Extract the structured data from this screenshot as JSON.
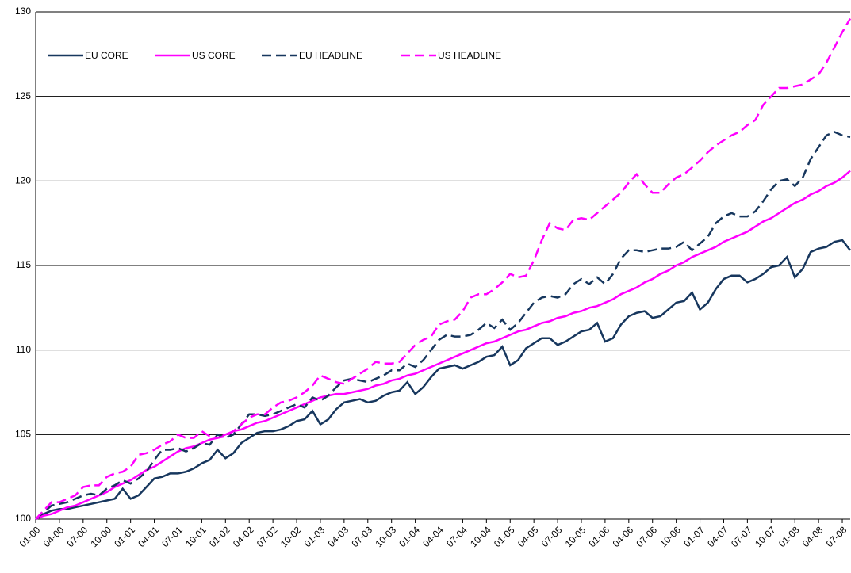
{
  "chart_data": {
    "type": "line",
    "categories": [
      "01-00",
      null,
      null,
      "04-00",
      null,
      null,
      "07-00",
      null,
      null,
      "10-00",
      null,
      null,
      "01-01",
      null,
      null,
      "04-01",
      null,
      null,
      "07-01",
      null,
      null,
      "10-01",
      null,
      null,
      "01-02",
      null,
      null,
      "04-02",
      null,
      null,
      "07-02",
      null,
      null,
      "10-02",
      null,
      null,
      "01-03",
      null,
      null,
      "04-03",
      null,
      null,
      "07-03",
      null,
      null,
      "10-03",
      null,
      null,
      "01-04",
      null,
      null,
      "04-04",
      null,
      null,
      "07-04",
      null,
      null,
      "10-04",
      null,
      null,
      "01-05",
      null,
      null,
      "04-05",
      null,
      null,
      "07-05",
      null,
      null,
      "10-05",
      null,
      null,
      "01-06",
      null,
      null,
      "04-06",
      null,
      null,
      "07-06",
      null,
      null,
      "10-06",
      null,
      null,
      "01-07",
      null,
      null,
      "04-07",
      null,
      null,
      "07-07",
      null,
      null,
      "10-07",
      null,
      null,
      "01-08",
      null,
      null,
      "04-08",
      null,
      null,
      "07-08",
      null
    ],
    "series": [
      {
        "name": "EU CORE",
        "color": "#17375e",
        "dash": false,
        "values": [
          100.0,
          100.3,
          100.5,
          100.6,
          100.6,
          100.7,
          100.8,
          100.9,
          101.0,
          101.1,
          101.2,
          101.8,
          101.2,
          101.4,
          101.9,
          102.4,
          102.5,
          102.7,
          102.7,
          102.8,
          103.0,
          103.3,
          103.5,
          104.1,
          103.6,
          103.9,
          104.5,
          104.8,
          105.1,
          105.2,
          105.2,
          105.3,
          105.5,
          105.8,
          105.9,
          106.4,
          105.6,
          105.9,
          106.5,
          106.9,
          107.0,
          107.1,
          106.9,
          107.0,
          107.3,
          107.5,
          107.6,
          108.1,
          107.4,
          107.8,
          108.4,
          108.9,
          109.0,
          109.1,
          108.9,
          109.1,
          109.3,
          109.6,
          109.7,
          110.2,
          109.1,
          109.4,
          110.1,
          110.4,
          110.7,
          110.7,
          110.3,
          110.5,
          110.8,
          111.1,
          111.2,
          111.6,
          110.5,
          110.7,
          111.5,
          112.0,
          112.2,
          112.3,
          111.9,
          112.0,
          112.4,
          112.8,
          112.9,
          113.4,
          112.4,
          112.8,
          113.6,
          114.2,
          114.4,
          114.4,
          114.0,
          114.2,
          114.5,
          114.9,
          115.0,
          115.5,
          114.3,
          114.8,
          115.8,
          116.0,
          116.1,
          116.4,
          116.5,
          115.9
        ]
      },
      {
        "name": "US CORE",
        "color": "#ff00ff",
        "dash": false,
        "values": [
          100.0,
          100.2,
          100.3,
          100.5,
          100.7,
          100.8,
          101.0,
          101.2,
          101.4,
          101.6,
          101.9,
          102.1,
          102.3,
          102.6,
          102.9,
          103.1,
          103.4,
          103.7,
          104.0,
          104.2,
          104.3,
          104.5,
          104.7,
          104.8,
          105.0,
          105.2,
          105.3,
          105.5,
          105.7,
          105.8,
          106.0,
          106.2,
          106.4,
          106.6,
          106.8,
          107.0,
          107.2,
          107.3,
          107.4,
          107.4,
          107.5,
          107.6,
          107.7,
          107.9,
          108.0,
          108.2,
          108.3,
          108.5,
          108.6,
          108.8,
          109.0,
          109.2,
          109.4,
          109.6,
          109.8,
          110.0,
          110.2,
          110.4,
          110.5,
          110.7,
          110.9,
          111.1,
          111.2,
          111.4,
          111.6,
          111.7,
          111.9,
          112.0,
          112.2,
          112.3,
          112.5,
          112.6,
          112.8,
          113.0,
          113.3,
          113.5,
          113.7,
          114.0,
          114.2,
          114.5,
          114.7,
          115.0,
          115.2,
          115.5,
          115.7,
          115.9,
          116.1,
          116.4,
          116.6,
          116.8,
          117.0,
          117.3,
          117.6,
          117.8,
          118.1,
          118.4,
          118.7,
          118.9,
          119.2,
          119.4,
          119.7,
          119.9,
          120.2,
          120.6
        ]
      },
      {
        "name": "EU HEADLINE",
        "color": "#17375e",
        "dash": true,
        "values": [
          100.0,
          100.4,
          100.8,
          100.9,
          101.0,
          101.2,
          101.4,
          101.5,
          101.4,
          101.8,
          102.0,
          102.3,
          102.1,
          102.4,
          102.8,
          103.5,
          104.1,
          104.1,
          104.2,
          104.0,
          104.2,
          104.5,
          104.4,
          105.0,
          104.8,
          105.0,
          105.6,
          106.2,
          106.2,
          106.1,
          106.2,
          106.4,
          106.6,
          106.8,
          106.6,
          107.2,
          107.0,
          107.3,
          107.8,
          108.2,
          108.3,
          108.2,
          108.1,
          108.3,
          108.5,
          108.8,
          108.8,
          109.2,
          109.0,
          109.4,
          110.0,
          110.6,
          110.9,
          110.8,
          110.8,
          110.9,
          111.2,
          111.6,
          111.3,
          111.8,
          111.2,
          111.6,
          112.2,
          112.8,
          113.1,
          113.2,
          113.1,
          113.3,
          113.9,
          114.2,
          113.9,
          114.3,
          113.9,
          114.5,
          115.4,
          115.9,
          115.9,
          115.8,
          115.9,
          116.0,
          116.0,
          116.1,
          116.4,
          115.9,
          116.3,
          116.7,
          117.5,
          117.9,
          118.1,
          117.9,
          117.9,
          118.2,
          118.8,
          119.5,
          120.0,
          120.1,
          119.7,
          120.2,
          121.3,
          122.0,
          122.7,
          122.9,
          122.7,
          122.6
        ]
      },
      {
        "name": "US HEADLINE",
        "color": "#ff00ff",
        "dash": true,
        "values": [
          100.0,
          100.5,
          101.0,
          101.0,
          101.2,
          101.4,
          101.9,
          102.0,
          102.0,
          102.5,
          102.7,
          102.8,
          103.1,
          103.8,
          103.9,
          104.1,
          104.4,
          104.6,
          105.0,
          104.8,
          104.8,
          105.2,
          104.9,
          104.8,
          104.9,
          105.2,
          105.6,
          106.0,
          106.2,
          106.2,
          106.6,
          106.9,
          107.0,
          107.2,
          107.5,
          107.9,
          108.5,
          108.3,
          108.1,
          108.0,
          108.3,
          108.6,
          108.9,
          109.3,
          109.2,
          109.2,
          109.3,
          109.8,
          110.3,
          110.6,
          110.8,
          111.5,
          111.7,
          111.8,
          112.3,
          113.1,
          113.3,
          113.3,
          113.6,
          114.0,
          114.5,
          114.3,
          114.4,
          115.3,
          116.5,
          117.5,
          117.2,
          117.1,
          117.7,
          117.8,
          117.7,
          118.1,
          118.5,
          118.9,
          119.3,
          119.9,
          120.4,
          119.8,
          119.3,
          119.3,
          119.8,
          120.2,
          120.4,
          120.8,
          121.2,
          121.7,
          122.1,
          122.4,
          122.7,
          122.9,
          123.3,
          123.6,
          124.5,
          125.0,
          125.5,
          125.5,
          125.6,
          125.7,
          126.0,
          126.3,
          127.0,
          127.9,
          128.8,
          129.6
        ]
      }
    ],
    "ylim": [
      100,
      130
    ],
    "yticks": [
      100,
      105,
      110,
      115,
      120,
      125,
      130
    ],
    "grid": true,
    "legend": "top-left"
  }
}
